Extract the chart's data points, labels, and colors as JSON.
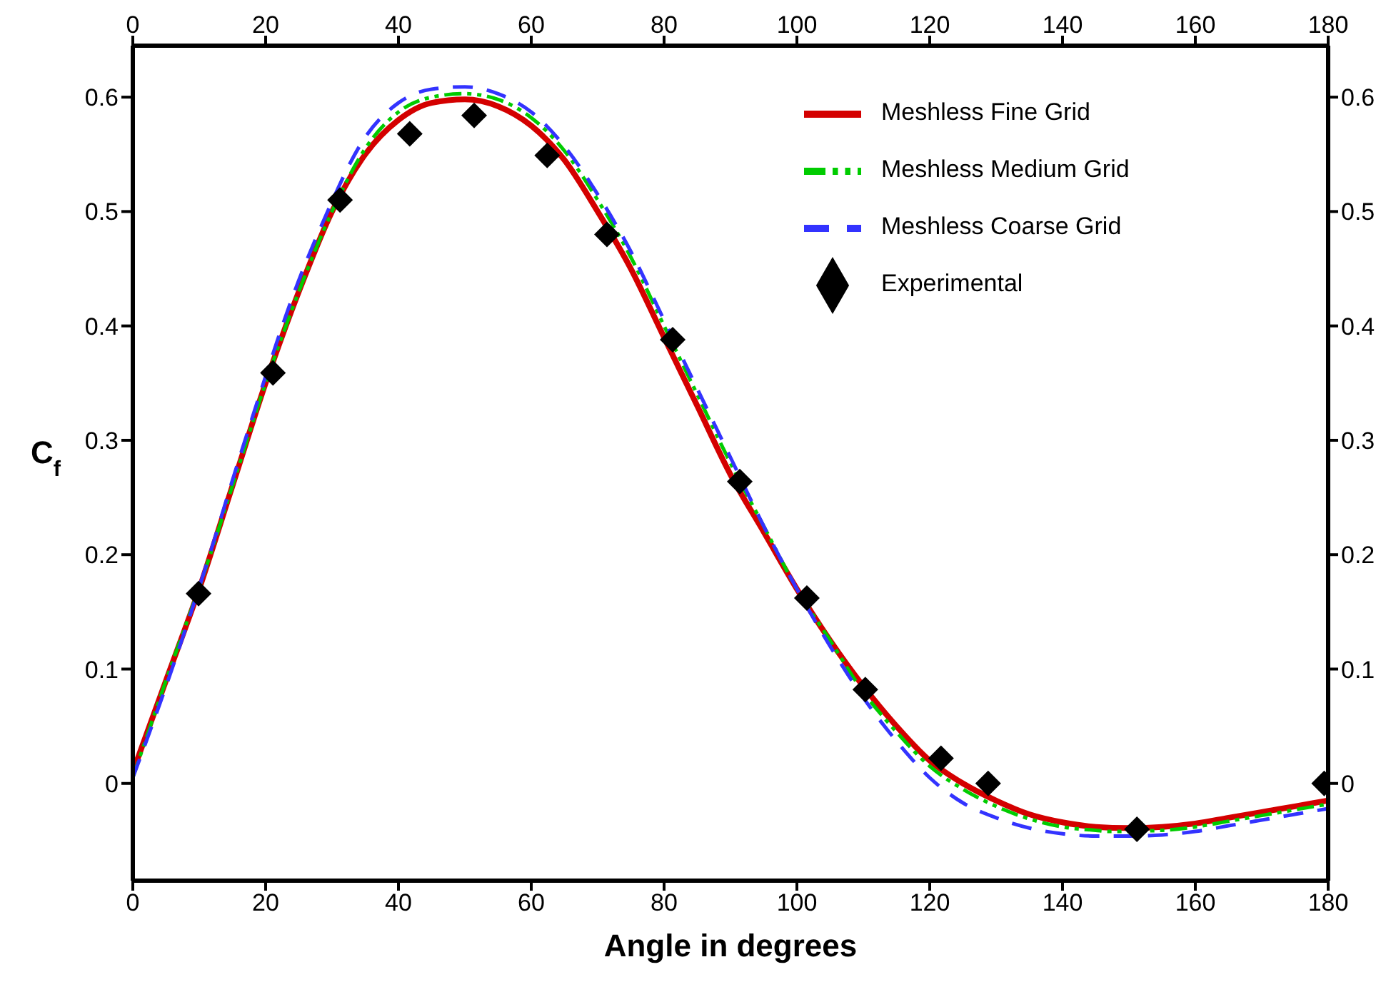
{
  "chart_data": {
    "type": "line",
    "xlabel": "Angle in degrees",
    "ylabel": "C$_{f}$",
    "xlim": [
      0,
      180
    ],
    "xticks": [
      0,
      20,
      40,
      60,
      80,
      100,
      120,
      140,
      160,
      180
    ],
    "x2lim": [
      0,
      180
    ],
    "x2ticks": [
      0,
      20,
      40,
      60,
      80,
      100,
      120,
      140,
      160,
      180
    ],
    "ylim": [
      -0.085,
      0.645
    ],
    "yticks": [
      0,
      0.1,
      0.2,
      0.3,
      0.4,
      0.5,
      0.6
    ],
    "y2lim": [
      -0.085,
      0.645
    ],
    "y2ticks": [
      0,
      0.1,
      0.2,
      0.3,
      0.4,
      0.5,
      0.6
    ],
    "grid": false,
    "legend": "top right",
    "marker": "none",
    "series": [
      {
        "name": "Meshless Fine Grid",
        "color": "#d40000",
        "line_style": "solid",
        "x": [
          0,
          5,
          10,
          15,
          20,
          25,
          30,
          35,
          40,
          45,
          50,
          55,
          60,
          65,
          70,
          75,
          80,
          85,
          90,
          95,
          100,
          105,
          110,
          115,
          120,
          125,
          130,
          135,
          140,
          145,
          150,
          155,
          160,
          165,
          170,
          175,
          180
        ],
        "values": [
          0.01,
          0.09,
          0.17,
          0.26,
          0.35,
          0.43,
          0.5,
          0.55,
          0.58,
          0.595,
          0.598,
          0.592,
          0.575,
          0.545,
          0.5,
          0.45,
          0.39,
          0.33,
          0.27,
          0.22,
          0.17,
          0.125,
          0.085,
          0.05,
          0.02,
          0.0,
          -0.015,
          -0.027,
          -0.034,
          -0.038,
          -0.039,
          -0.038,
          -0.035,
          -0.03,
          -0.025,
          -0.02,
          -0.015
        ]
      },
      {
        "name": "Meshless Medium Grid",
        "color": "#00cc00",
        "line_style": "dashed",
        "x": [
          0,
          5,
          11.5,
          15,
          20,
          25,
          30,
          35,
          40,
          45,
          50,
          55,
          60,
          65,
          70,
          75,
          80,
          85,
          90,
          95,
          100,
          105,
          110,
          115,
          120,
          125,
          130,
          135,
          140,
          145,
          147,
          155,
          160,
          165,
          170,
          175,
          180
        ],
        "values": [
          0.005,
          0.09,
          0.197,
          0.26,
          0.35,
          0.43,
          0.5,
          0.555,
          0.587,
          0.6,
          0.603,
          0.598,
          0.582,
          0.553,
          0.51,
          0.46,
          0.4,
          0.34,
          0.28,
          0.225,
          0.17,
          0.125,
          0.08,
          0.045,
          0.015,
          -0.005,
          -0.02,
          -0.031,
          -0.038,
          -0.041,
          -0.042,
          -0.041,
          -0.038,
          -0.033,
          -0.028,
          -0.023,
          -0.018
        ]
      },
      {
        "name": "Meshless Coarse Grid",
        "color": "#3333ff",
        "line_style": "dashed",
        "x": [
          0,
          5,
          12,
          15,
          18,
          25,
          28.5,
          35,
          40,
          45,
          50,
          55,
          60,
          65,
          70,
          75,
          80,
          85,
          90,
          95,
          100,
          105,
          110,
          115,
          120,
          125,
          130,
          135,
          140,
          145,
          150,
          155,
          160,
          165,
          170,
          175,
          180
        ],
        "values": [
          0.005,
          0.085,
          0.208,
          0.265,
          0.32,
          0.44,
          0.489,
          0.565,
          0.595,
          0.607,
          0.609,
          0.603,
          0.587,
          0.557,
          0.515,
          0.465,
          0.405,
          0.345,
          0.285,
          0.225,
          0.17,
          0.12,
          0.075,
          0.037,
          0.005,
          -0.017,
          -0.03,
          -0.039,
          -0.044,
          -0.046,
          -0.046,
          -0.045,
          -0.042,
          -0.037,
          -0.032,
          -0.027,
          -0.022
        ]
      },
      {
        "name": "Experimental",
        "type": "scatter",
        "color": "#000000",
        "marker": "diamond",
        "x": [
          9.9,
          21.1,
          31.2,
          41.7,
          51.4,
          62.4,
          71.4,
          81.3,
          91.4,
          101.5,
          110.3,
          121.7,
          128.8,
          151.2,
          179.4
        ],
        "values": [
          0.166,
          0.359,
          0.51,
          0.568,
          0.584,
          0.549,
          0.48,
          0.388,
          0.264,
          0.162,
          0.082,
          0.022,
          0.0,
          -0.04,
          0.0
        ]
      }
    ]
  }
}
